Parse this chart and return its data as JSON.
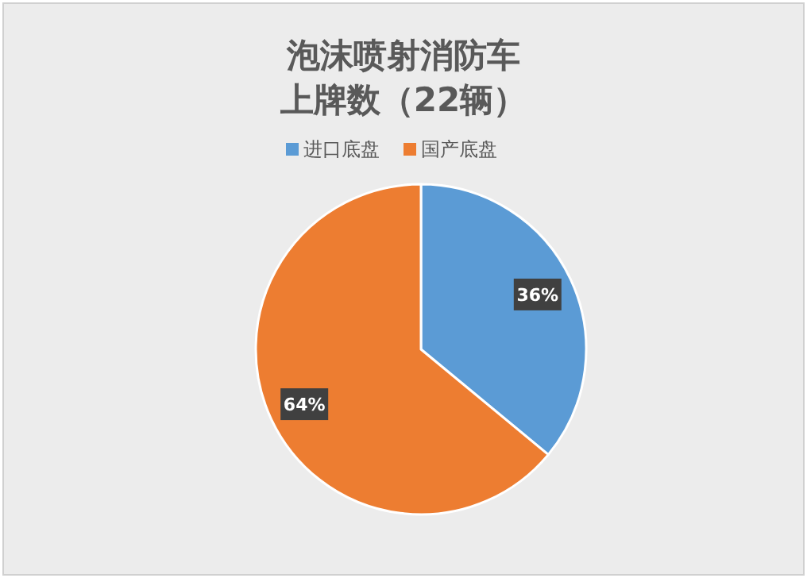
{
  "chart_data": {
    "type": "pie",
    "title": "泡沫喷射消防车",
    "subtitle": "上牌数（22辆）",
    "categories": [
      "进口底盘",
      "国产底盘"
    ],
    "values": [
      36,
      64
    ],
    "colors": [
      "#5b9bd5",
      "#ed7d31"
    ],
    "value_labels": [
      "36%",
      "64%"
    ],
    "legend": "top"
  }
}
